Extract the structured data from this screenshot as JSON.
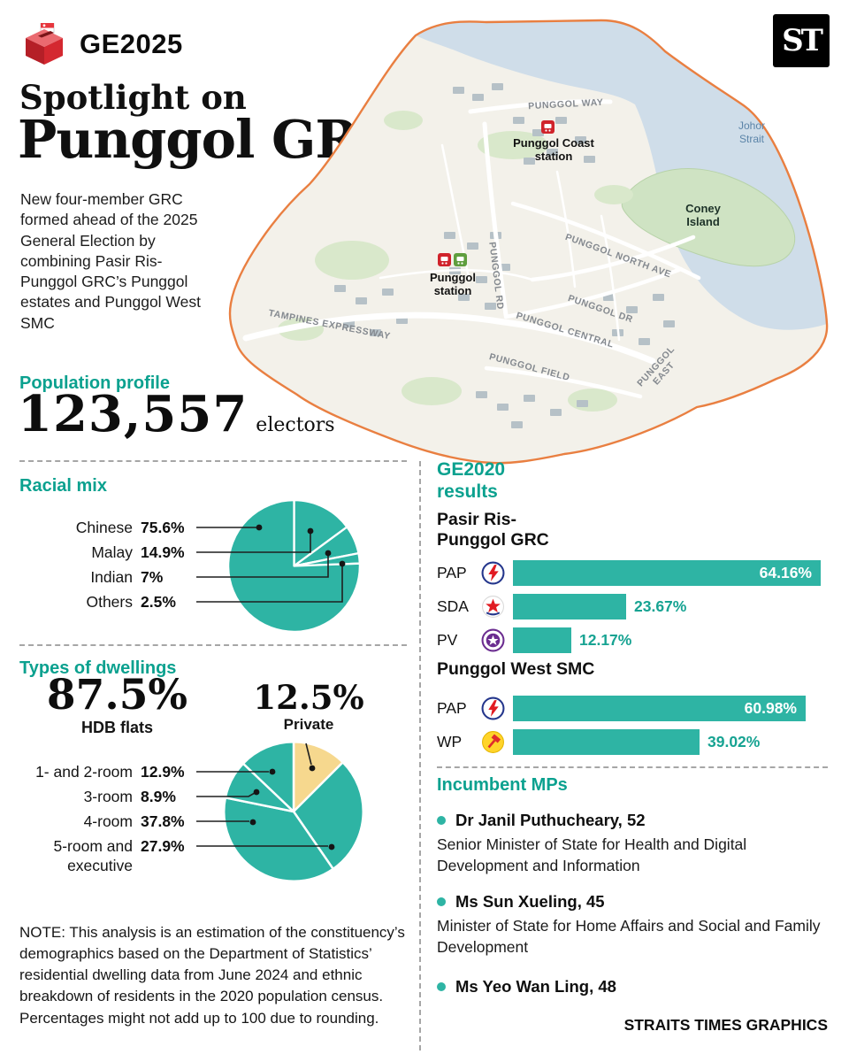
{
  "colors": {
    "teal_fill": "#2eb4a4",
    "teal_heading": "#0ba18f",
    "private_yellow": "#f6d88e",
    "boundary_orange": "#e97f41"
  },
  "header": {
    "badge_label": "GE2025",
    "masthead": "ST",
    "title_line1": "Spotlight on",
    "title_line2": "Punggol GRC",
    "intro": "New four-member GRC formed ahead of the 2025 General Election by combining Pasir Ris-Punggol GRC’s Punggol estates and Punggol West SMC"
  },
  "map": {
    "labels": {
      "punggol_way": "PUNGGOL WAY",
      "punggol_coast_l1": "Punggol Coast",
      "punggol_coast_l2": "station",
      "johor_l1": "Johor",
      "johor_l2": "Strait",
      "coney_l1": "Coney",
      "coney_l2": "Island",
      "north_ave": "PUNGGOL NORTH AVE",
      "punggol_l1": "Punggol",
      "punggol_l2": "station",
      "rd": "PUNGGOL RD",
      "dr": "PUNGGOL DR",
      "central": "PUNGGOL CENTRAL",
      "tpe": "TAMPINES EXPRESSWAY",
      "field": "PUNGGOL FIELD",
      "east_l1": "PUNGGOL",
      "east_l2": "EAST"
    }
  },
  "population": {
    "heading": "Population profile",
    "count": "123,557",
    "unit": "electors"
  },
  "racial_mix": {
    "heading": "Racial mix",
    "rows": [
      {
        "label": "Chinese",
        "pct": "75.6%"
      },
      {
        "label": "Malay",
        "pct": "14.9%"
      },
      {
        "label": "Indian",
        "pct": "7%"
      },
      {
        "label": "Others",
        "pct": "2.5%"
      }
    ],
    "pie": {
      "start_deg": 0,
      "slices": [
        {
          "label": "Malay",
          "value": 14.9,
          "color": "#2eb4a4"
        },
        {
          "label": "Indian",
          "value": 7,
          "color": "#2eb4a4"
        },
        {
          "label": "Others",
          "value": 2.5,
          "color": "#2eb4a4"
        },
        {
          "label": "Chinese",
          "value": 75.6,
          "color": "#2eb4a4"
        }
      ]
    }
  },
  "dwellings": {
    "heading": "Types of dwellings",
    "hdb_pct": "87.5%",
    "hdb_label": "HDB flats",
    "private_pct": "12.5%",
    "private_label": "Private",
    "rows": [
      {
        "label": "1- and 2-room",
        "pct": "12.9%"
      },
      {
        "label": "3-room",
        "pct": "8.9%"
      },
      {
        "label": "4-room",
        "pct": "37.8%"
      },
      {
        "label": "5-room and executive",
        "pct": "27.9%"
      }
    ],
    "pie": {
      "start_deg": 0,
      "slices": [
        {
          "label": "Private",
          "value": 12.5,
          "color": "#f6d88e"
        },
        {
          "label": "5-room and executive",
          "value": 27.9,
          "color": "#2eb4a4"
        },
        {
          "label": "4-room",
          "value": 37.8,
          "color": "#2eb4a4"
        },
        {
          "label": "3-room",
          "value": 8.9,
          "color": "#2eb4a4"
        },
        {
          "label": "1- and 2-room",
          "value": 12.9,
          "color": "#2eb4a4"
        }
      ]
    }
  },
  "note": "NOTE: This analysis is an estimation of the constituency’s demographics based on the Department of Statistics’ residential dwelling data from June 2024 and ethnic breakdown of residents in the 2020 population census. Percentages might not add up to 100 due to rounding.",
  "ge2020": {
    "heading_lines": [
      "GE2020",
      "results"
    ],
    "groups": [
      {
        "title_lines": [
          "Pasir Ris-",
          "Punggol GRC"
        ],
        "rows": [
          {
            "party": "PAP",
            "value": 64.16,
            "display": "64.16%"
          },
          {
            "party": "SDA",
            "value": 23.67,
            "display": "23.67%"
          },
          {
            "party": "PV",
            "value": 12.17,
            "display": "12.17%"
          }
        ]
      },
      {
        "title_lines": [
          "Punggol West SMC"
        ],
        "rows": [
          {
            "party": "PAP",
            "value": 60.98,
            "display": "60.98%"
          },
          {
            "party": "WP",
            "value": 39.02,
            "display": "39.02%"
          }
        ]
      }
    ]
  },
  "mps": {
    "heading": "Incumbent MPs",
    "items": [
      {
        "name": "Dr Janil Puthucheary, 52",
        "role": "Senior Minister of State for Health and Digital Development and Information"
      },
      {
        "name": "Ms Sun Xueling, 45",
        "role": "Minister of State for Home Affairs and Social and Family Development"
      },
      {
        "name": "Ms Yeo Wan Ling, 48",
        "role": ""
      }
    ]
  },
  "credit": "STRAITS TIMES GRAPHICS",
  "chart_data": [
    {
      "type": "pie",
      "title": "Racial mix",
      "labels": [
        "Chinese",
        "Malay",
        "Indian",
        "Others"
      ],
      "values": [
        75.6,
        14.9,
        7,
        2.5
      ],
      "unit": "%"
    },
    {
      "type": "pie",
      "title": "Types of dwellings",
      "labels": [
        "1- and 2-room",
        "3-room",
        "4-room",
        "5-room and executive",
        "Private"
      ],
      "values": [
        12.9,
        8.9,
        37.8,
        27.9,
        12.5
      ],
      "unit": "%",
      "annotations": {
        "HDB flats": 87.5,
        "Private": 12.5
      }
    },
    {
      "type": "bar",
      "title": "GE2020 results — Pasir Ris-Punggol GRC",
      "categories": [
        "PAP",
        "SDA",
        "PV"
      ],
      "values": [
        64.16,
        23.67,
        12.17
      ],
      "unit": "%",
      "xlim": [
        0,
        100
      ]
    },
    {
      "type": "bar",
      "title": "GE2020 results — Punggol West SMC",
      "categories": [
        "PAP",
        "WP"
      ],
      "values": [
        60.98,
        39.02
      ],
      "unit": "%",
      "xlim": [
        0,
        100
      ]
    }
  ]
}
